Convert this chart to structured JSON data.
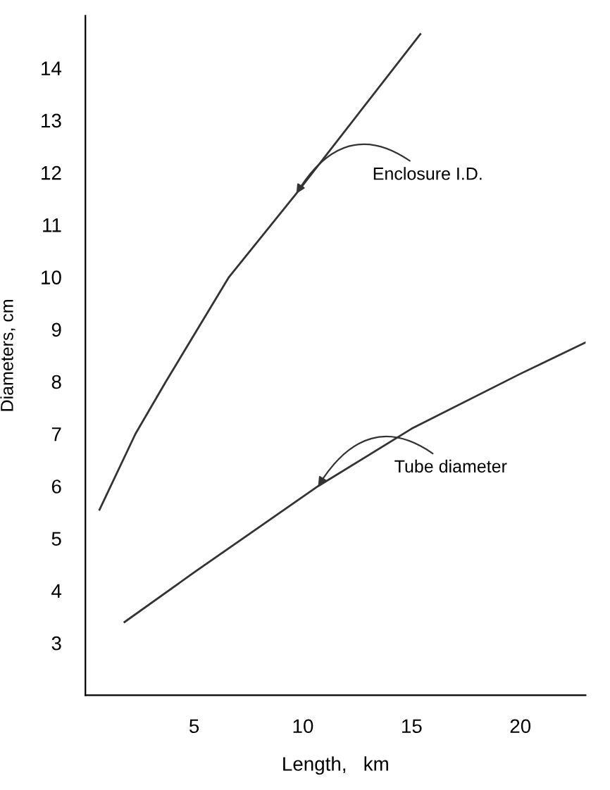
{
  "chart_data": {
    "type": "line",
    "xlabel": "Length,   km",
    "ylabel": "Diameters, cm",
    "xlim": [
      0,
      23
    ],
    "ylim": [
      2,
      15
    ],
    "xticks": [
      5,
      10,
      15,
      20
    ],
    "yticks": [
      3,
      4,
      5,
      6,
      7,
      8,
      9,
      10,
      11,
      12,
      13,
      14
    ],
    "grid": false,
    "legend": false,
    "marker": "none",
    "line_style": "solid",
    "series": [
      {
        "color": "#333333",
        "x": [
          0.65,
          2.3,
          3.7,
          6.6,
          9.7,
          15.4
        ],
        "values": [
          5.55,
          7,
          8,
          10,
          11.6,
          14.65
        ]
      },
      {
        "color": "#333333",
        "x": [
          1.8,
          5,
          10.7,
          15,
          20,
          23
        ],
        "values": [
          3.4,
          4.35,
          6.0,
          7.1,
          8.15,
          8.75
        ]
      }
    ],
    "annotations": [
      {
        "text": "Enclosure I.D.",
        "x": 9.7,
        "y": 11.6
      },
      {
        "text": "Tube diameter",
        "x": 10.7,
        "y": 6.0
      }
    ]
  }
}
